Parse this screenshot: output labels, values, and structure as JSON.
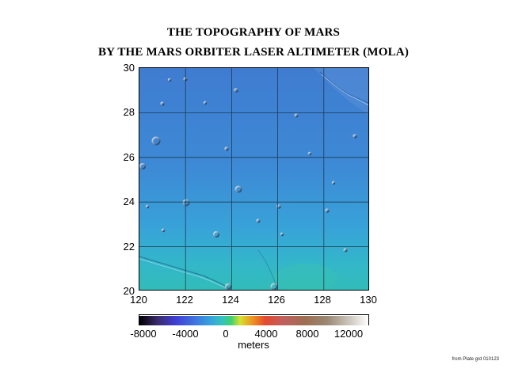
{
  "title_line1": "THE TOPOGRAPHY OF MARS",
  "title_line2": "BY THE MARS ORBITER LASER ALTIMETER (MOLA)",
  "map": {
    "latitude_ticks": [
      "30",
      "28",
      "26",
      "24",
      "22",
      "20"
    ],
    "longitude_ticks": [
      "120",
      "122",
      "124",
      "126",
      "128",
      "130"
    ],
    "lat_range": [
      20,
      30
    ],
    "lon_range": [
      120,
      130
    ],
    "grid": true
  },
  "colorbar": {
    "tick_labels": [
      "-8000",
      "-4000",
      "0",
      "4000",
      "8000",
      "12000"
    ],
    "unit_label": "meters",
    "range": [
      -9000,
      12500
    ]
  },
  "credit": "from Plate grd 010123"
}
